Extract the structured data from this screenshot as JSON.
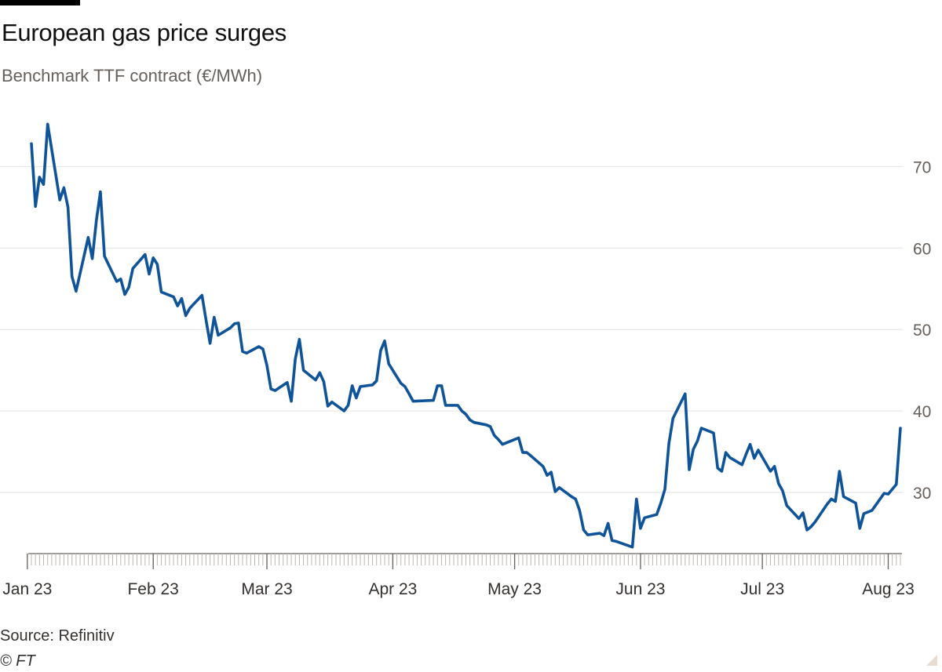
{
  "brand_bar": {
    "color": "#000000"
  },
  "chart_data": {
    "type": "line",
    "title": "European gas price surges",
    "subtitle": "Benchmark TTF contract (€/MWh)",
    "xlabel": "",
    "ylabel": "",
    "ylim": [
      22.5,
      76
    ],
    "yticks": [
      30,
      40,
      50,
      60,
      70
    ],
    "y_axis_side": "right",
    "grid": "horizontal",
    "legend": "none",
    "line_color": "#0f5499",
    "xticks": [
      {
        "date": "2023-01-01",
        "label": "Jan 23"
      },
      {
        "date": "2023-02-01",
        "label": "Feb 23"
      },
      {
        "date": "2023-03-01",
        "label": "Mar 23"
      },
      {
        "date": "2023-04-01",
        "label": "Apr 23"
      },
      {
        "date": "2023-05-01",
        "label": "May 23"
      },
      {
        "date": "2023-06-01",
        "label": "Jun 23"
      },
      {
        "date": "2023-07-01",
        "label": "Jul 23"
      },
      {
        "date": "2023-08-01",
        "label": "Aug 23"
      }
    ],
    "series": [
      {
        "values": [
          [
            "2023-01-02",
            72.8
          ],
          [
            "2023-01-03",
            65.1
          ],
          [
            "2023-01-04",
            68.7
          ],
          [
            "2023-01-05",
            67.8
          ],
          [
            "2023-01-06",
            75.2
          ],
          [
            "2023-01-09",
            65.9
          ],
          [
            "2023-01-10",
            67.4
          ],
          [
            "2023-01-11",
            65.0
          ],
          [
            "2023-01-12",
            56.5
          ],
          [
            "2023-01-13",
            54.7
          ],
          [
            "2023-01-16",
            61.3
          ],
          [
            "2023-01-17",
            58.7
          ],
          [
            "2023-01-18",
            63.4
          ],
          [
            "2023-01-19",
            66.9
          ],
          [
            "2023-01-20",
            59.0
          ],
          [
            "2023-01-23",
            55.9
          ],
          [
            "2023-01-24",
            56.2
          ],
          [
            "2023-01-25",
            54.3
          ],
          [
            "2023-01-26",
            55.2
          ],
          [
            "2023-01-27",
            57.5
          ],
          [
            "2023-01-30",
            59.2
          ],
          [
            "2023-01-31",
            56.8
          ],
          [
            "2023-02-01",
            58.8
          ],
          [
            "2023-02-02",
            58.0
          ],
          [
            "2023-02-03",
            54.6
          ],
          [
            "2023-02-06",
            54.0
          ],
          [
            "2023-02-07",
            52.9
          ],
          [
            "2023-02-08",
            53.8
          ],
          [
            "2023-02-09",
            51.7
          ],
          [
            "2023-02-10",
            52.6
          ],
          [
            "2023-02-13",
            54.2
          ],
          [
            "2023-02-14",
            51.2
          ],
          [
            "2023-02-15",
            48.3
          ],
          [
            "2023-02-16",
            51.5
          ],
          [
            "2023-02-17",
            49.3
          ],
          [
            "2023-02-20",
            50.2
          ],
          [
            "2023-02-21",
            50.7
          ],
          [
            "2023-02-22",
            50.8
          ],
          [
            "2023-02-23",
            47.3
          ],
          [
            "2023-02-24",
            47.1
          ],
          [
            "2023-02-27",
            47.9
          ],
          [
            "2023-02-28",
            47.6
          ],
          [
            "2023-03-01",
            45.6
          ],
          [
            "2023-03-02",
            42.7
          ],
          [
            "2023-03-03",
            42.5
          ],
          [
            "2023-03-06",
            43.5
          ],
          [
            "2023-03-07",
            41.2
          ],
          [
            "2023-03-08",
            46.4
          ],
          [
            "2023-03-09",
            48.8
          ],
          [
            "2023-03-10",
            45.0
          ],
          [
            "2023-03-13",
            43.8
          ],
          [
            "2023-03-14",
            44.7
          ],
          [
            "2023-03-15",
            43.6
          ],
          [
            "2023-03-16",
            40.6
          ],
          [
            "2023-03-17",
            41.1
          ],
          [
            "2023-03-20",
            40.0
          ],
          [
            "2023-03-21",
            40.7
          ],
          [
            "2023-03-22",
            43.1
          ],
          [
            "2023-03-23",
            41.6
          ],
          [
            "2023-03-24",
            43.0
          ],
          [
            "2023-03-27",
            43.2
          ],
          [
            "2023-03-28",
            43.7
          ],
          [
            "2023-03-29",
            47.4
          ],
          [
            "2023-03-30",
            48.6
          ],
          [
            "2023-03-31",
            45.8
          ],
          [
            "2023-04-03",
            43.4
          ],
          [
            "2023-04-04",
            43.0
          ],
          [
            "2023-04-05",
            42.1
          ],
          [
            "2023-04-06",
            41.2
          ],
          [
            "2023-04-11",
            41.3
          ],
          [
            "2023-04-12",
            43.1
          ],
          [
            "2023-04-13",
            43.1
          ],
          [
            "2023-04-14",
            40.7
          ],
          [
            "2023-04-17",
            40.7
          ],
          [
            "2023-04-18",
            40.0
          ],
          [
            "2023-04-19",
            39.6
          ],
          [
            "2023-04-20",
            38.9
          ],
          [
            "2023-04-21",
            38.6
          ],
          [
            "2023-04-24",
            38.3
          ],
          [
            "2023-04-25",
            38.1
          ],
          [
            "2023-04-26",
            37.0
          ],
          [
            "2023-04-27",
            36.5
          ],
          [
            "2023-04-28",
            35.9
          ],
          [
            "2023-05-02",
            36.7
          ],
          [
            "2023-05-03",
            34.9
          ],
          [
            "2023-05-04",
            34.9
          ],
          [
            "2023-05-05",
            34.5
          ],
          [
            "2023-05-08",
            33.2
          ],
          [
            "2023-05-09",
            32.1
          ],
          [
            "2023-05-10",
            32.5
          ],
          [
            "2023-05-11",
            30.1
          ],
          [
            "2023-05-12",
            30.6
          ],
          [
            "2023-05-15",
            29.5
          ],
          [
            "2023-05-16",
            29.2
          ],
          [
            "2023-05-17",
            27.8
          ],
          [
            "2023-05-18",
            25.4
          ],
          [
            "2023-05-19",
            24.8
          ],
          [
            "2023-05-22",
            25.0
          ],
          [
            "2023-05-23",
            24.7
          ],
          [
            "2023-05-24",
            26.2
          ],
          [
            "2023-05-25",
            24.1
          ],
          [
            "2023-05-26",
            24.0
          ],
          [
            "2023-05-30",
            23.3
          ],
          [
            "2023-05-31",
            29.2
          ],
          [
            "2023-06-01",
            25.6
          ],
          [
            "2023-06-02",
            26.9
          ],
          [
            "2023-06-05",
            27.3
          ],
          [
            "2023-06-06",
            28.7
          ],
          [
            "2023-06-07",
            30.4
          ],
          [
            "2023-06-08",
            36.0
          ],
          [
            "2023-06-09",
            39.1
          ],
          [
            "2023-06-12",
            42.1
          ],
          [
            "2023-06-13",
            32.8
          ],
          [
            "2023-06-14",
            35.3
          ],
          [
            "2023-06-15",
            36.3
          ],
          [
            "2023-06-16",
            37.9
          ],
          [
            "2023-06-19",
            37.3
          ],
          [
            "2023-06-20",
            33.0
          ],
          [
            "2023-06-21",
            32.6
          ],
          [
            "2023-06-22",
            34.9
          ],
          [
            "2023-06-23",
            34.3
          ],
          [
            "2023-06-26",
            33.4
          ],
          [
            "2023-06-27",
            34.7
          ],
          [
            "2023-06-28",
            35.9
          ],
          [
            "2023-06-29",
            34.2
          ],
          [
            "2023-06-30",
            35.2
          ],
          [
            "2023-07-03",
            32.6
          ],
          [
            "2023-07-04",
            33.2
          ],
          [
            "2023-07-05",
            31.1
          ],
          [
            "2023-07-06",
            30.2
          ],
          [
            "2023-07-07",
            28.4
          ],
          [
            "2023-07-10",
            26.8
          ],
          [
            "2023-07-11",
            27.5
          ],
          [
            "2023-07-12",
            25.4
          ],
          [
            "2023-07-13",
            25.8
          ],
          [
            "2023-07-14",
            26.4
          ],
          [
            "2023-07-17",
            28.6
          ],
          [
            "2023-07-18",
            29.2
          ],
          [
            "2023-07-19",
            28.9
          ],
          [
            "2023-07-20",
            32.6
          ],
          [
            "2023-07-21",
            29.5
          ],
          [
            "2023-07-24",
            28.7
          ],
          [
            "2023-07-25",
            25.6
          ],
          [
            "2023-07-26",
            27.4
          ],
          [
            "2023-07-27",
            27.6
          ],
          [
            "2023-07-28",
            27.8
          ],
          [
            "2023-07-31",
            29.9
          ],
          [
            "2023-08-01",
            29.8
          ],
          [
            "2023-08-02",
            30.4
          ],
          [
            "2023-08-03",
            31.0
          ],
          [
            "2023-08-04",
            37.9
          ]
        ]
      }
    ]
  },
  "footer": {
    "source": "Source: Refinitiv",
    "copyright": "© FT"
  }
}
